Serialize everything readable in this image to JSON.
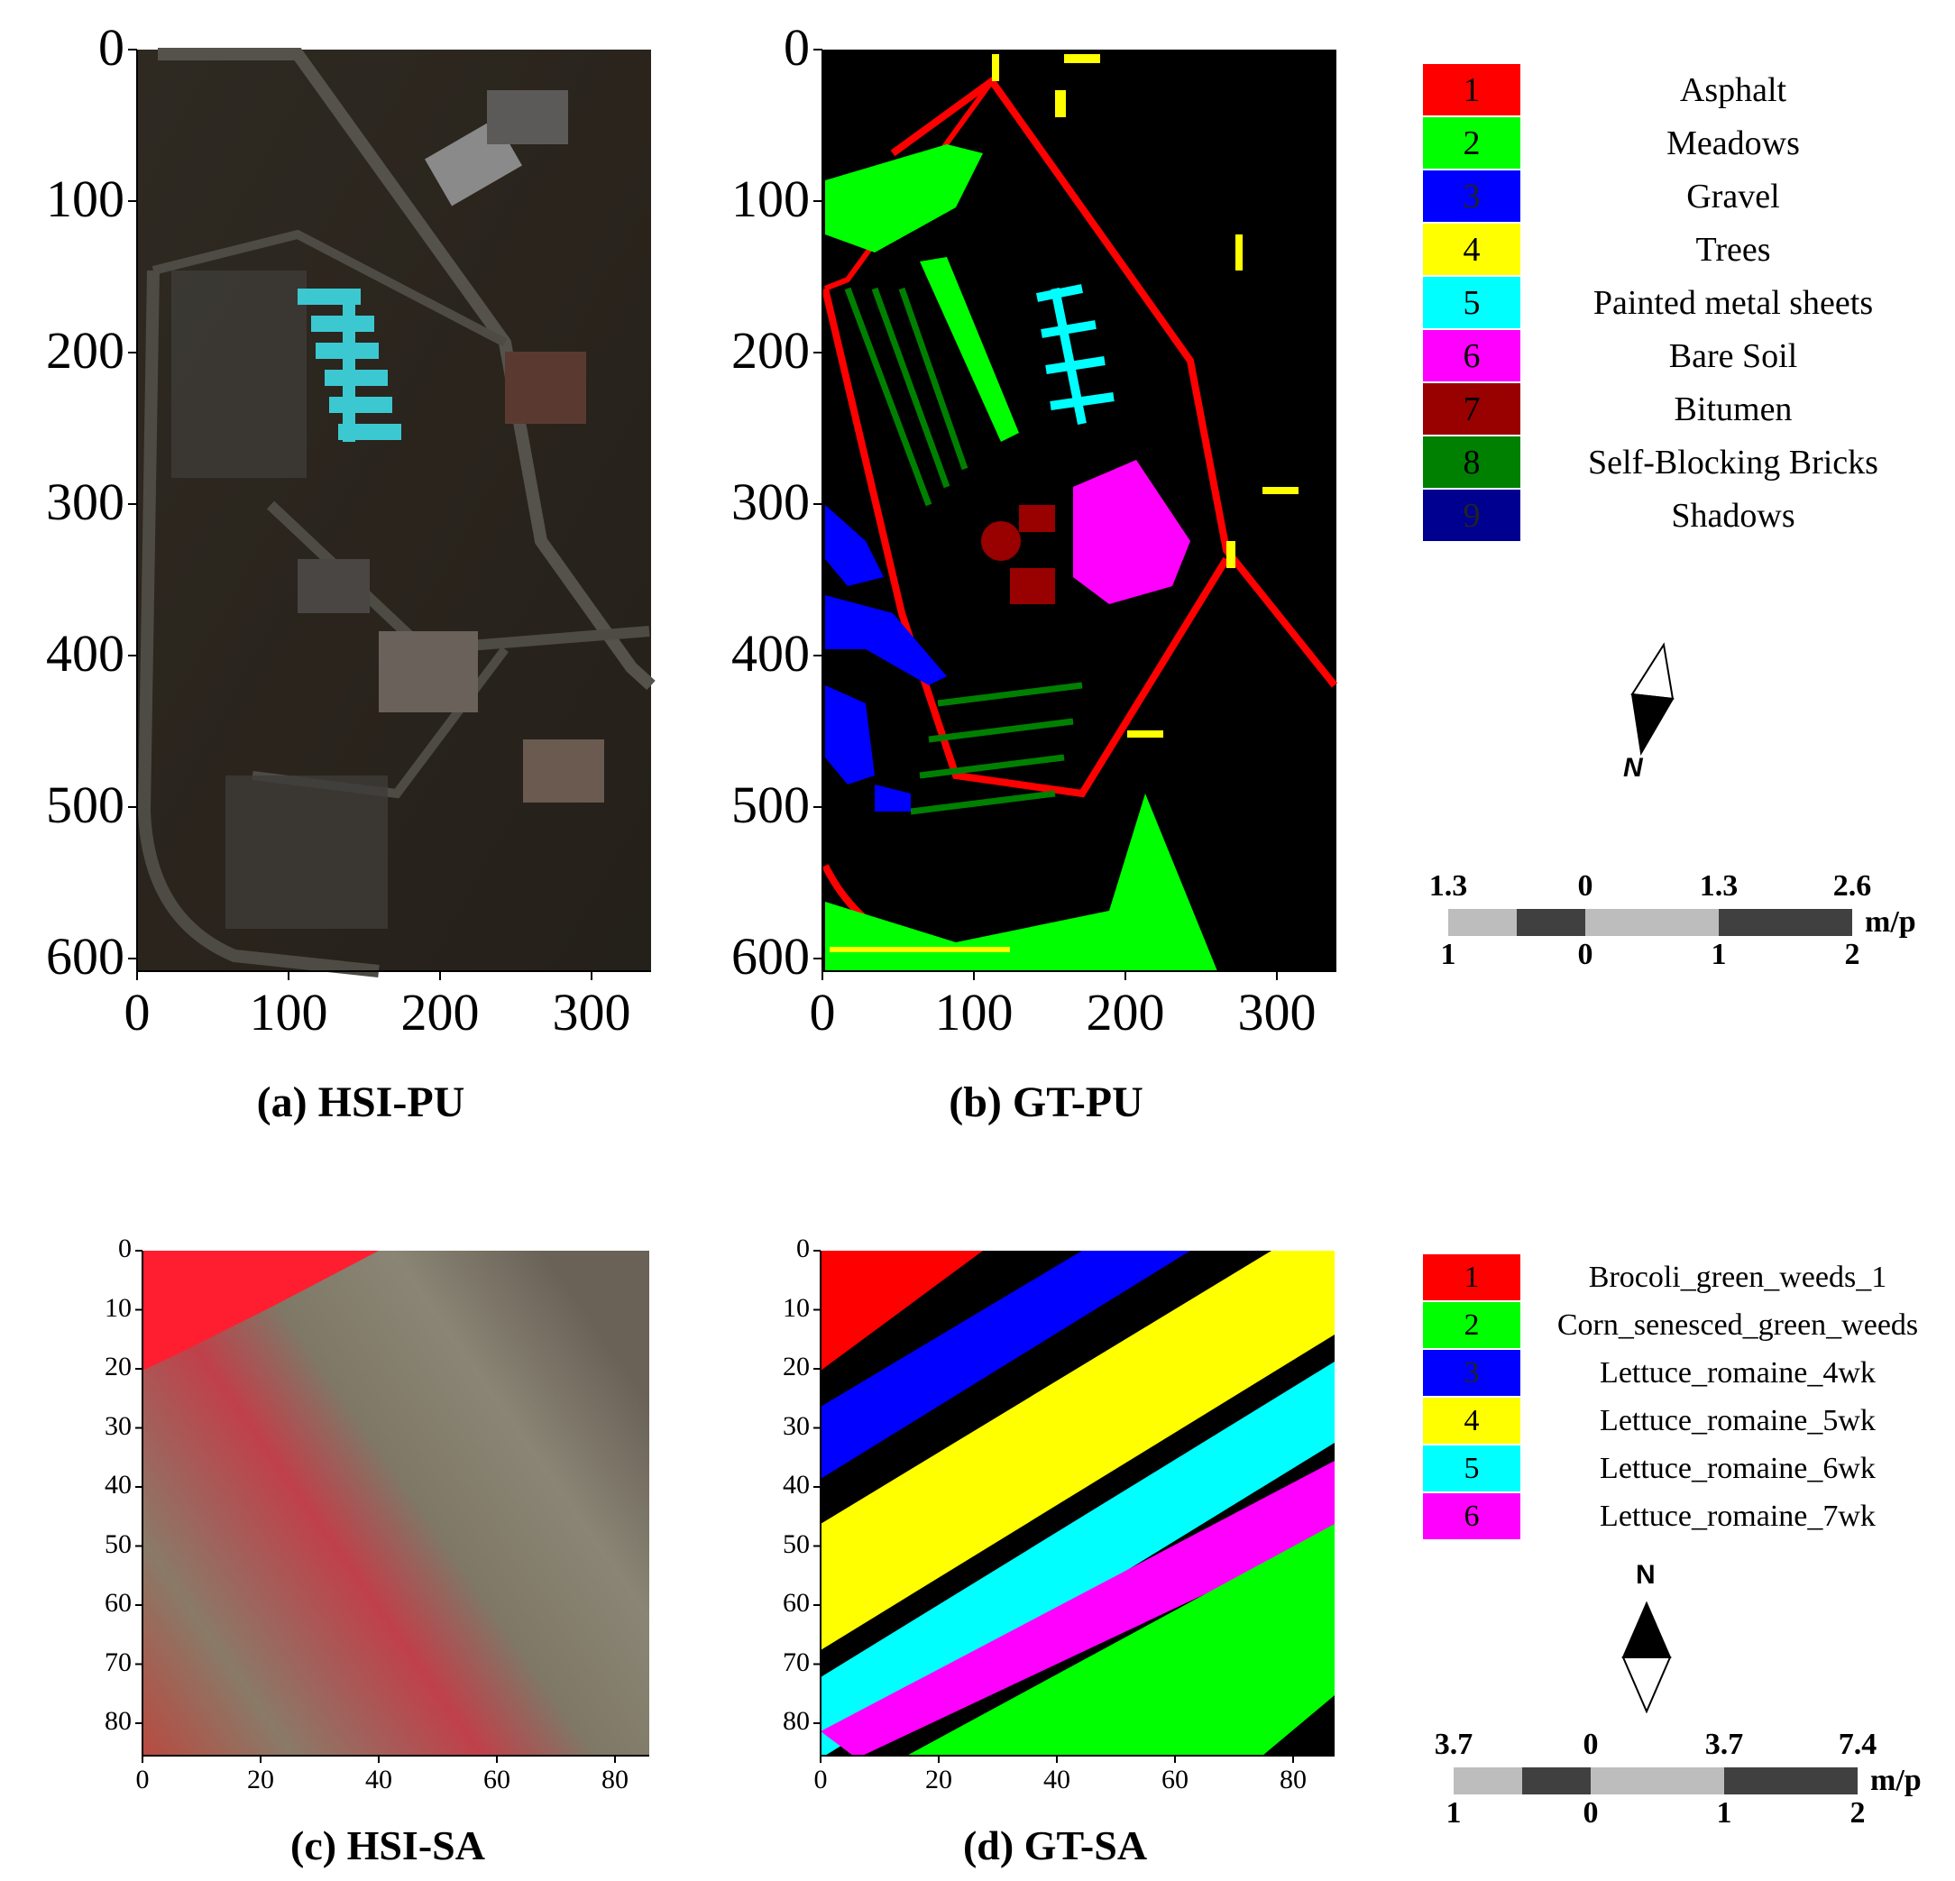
{
  "panels": {
    "a": {
      "caption": "(a) HSI-PU",
      "xticks": [
        "0",
        "100",
        "200",
        "300"
      ],
      "yticks": [
        "0",
        "100",
        "200",
        "300",
        "400",
        "500",
        "600"
      ]
    },
    "b": {
      "caption": "(b) GT-PU",
      "xticks": [
        "0",
        "100",
        "200",
        "300"
      ],
      "yticks": [
        "0",
        "100",
        "200",
        "300",
        "400",
        "500",
        "600"
      ]
    },
    "c": {
      "caption": "(c) HSI-SA",
      "xticks": [
        "0",
        "20",
        "40",
        "60",
        "80"
      ],
      "yticks": [
        "0",
        "10",
        "20",
        "30",
        "40",
        "50",
        "60",
        "70",
        "80"
      ]
    },
    "d": {
      "caption": "(d) GT-SA",
      "xticks": [
        "0",
        "20",
        "40",
        "60",
        "80"
      ],
      "yticks": [
        "0",
        "10",
        "20",
        "30",
        "40",
        "50",
        "60",
        "70",
        "80"
      ]
    }
  },
  "legend_pu": [
    {
      "num": "1",
      "label": "Asphalt",
      "color": "#ff0000"
    },
    {
      "num": "2",
      "label": "Meadows",
      "color": "#00ff00"
    },
    {
      "num": "3",
      "label": "Gravel",
      "color": "#0000ff"
    },
    {
      "num": "4",
      "label": "Trees",
      "color": "#ffff00"
    },
    {
      "num": "5",
      "label": "Painted metal sheets",
      "color": "#00ffff"
    },
    {
      "num": "6",
      "label": "Bare Soil",
      "color": "#ff00ff"
    },
    {
      "num": "7",
      "label": "Bitumen",
      "color": "#990000"
    },
    {
      "num": "8",
      "label": "Self-Blocking Bricks",
      "color": "#008000"
    },
    {
      "num": "9",
      "label": "Shadows",
      "color": "#000090"
    }
  ],
  "legend_sa": [
    {
      "num": "1",
      "label": "Brocoli_green_weeds_1",
      "color": "#ff0000"
    },
    {
      "num": "2",
      "label": "Corn_senesced_green_weeds",
      "color": "#00ff00"
    },
    {
      "num": "3",
      "label": "Lettuce_romaine_4wk",
      "color": "#0000ff"
    },
    {
      "num": "4",
      "label": "Lettuce_romaine_5wk",
      "color": "#ffff00"
    },
    {
      "num": "5",
      "label": "Lettuce_romaine_6wk",
      "color": "#00ffff"
    },
    {
      "num": "6",
      "label": "Lettuce_romaine_7wk",
      "color": "#ff00ff"
    }
  ],
  "compass": {
    "letter": "N"
  },
  "scale_pu": {
    "top": [
      "1.3",
      "0",
      "1.3",
      "2.6"
    ],
    "bottom": [
      "1",
      "0",
      "1",
      "2"
    ],
    "unit": "m/p"
  },
  "scale_sa": {
    "top": [
      "3.7",
      "0",
      "3.7",
      "7.4"
    ],
    "bottom": [
      "1",
      "0",
      "1",
      "2"
    ],
    "unit": "m/p"
  }
}
